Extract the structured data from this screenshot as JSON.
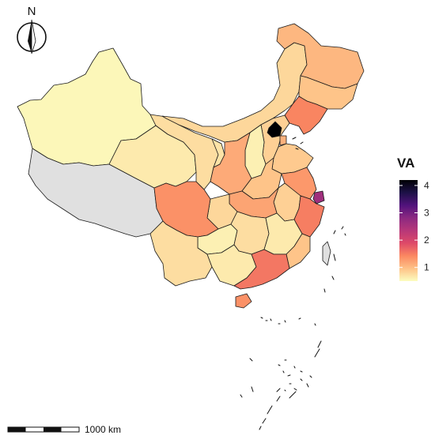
{
  "north_arrow": {
    "label": "N",
    "icon": "north-arrow-icon"
  },
  "legend": {
    "title": "VA",
    "ticks": [
      "1",
      "2",
      "3",
      "4"
    ],
    "range": [
      0.5,
      4.2
    ],
    "colors": [
      "#fcfdbf",
      "#fec287",
      "#fb8861",
      "#de4968",
      "#b73779",
      "#8c2981",
      "#51127c",
      "#1d1147",
      "#000004"
    ]
  },
  "scale_bar": {
    "label": "1000 km"
  },
  "colors": {
    "no_data": "#e0e0e0",
    "border": "#1a1a1a",
    "background": "#ffffff"
  },
  "regions": [
    {
      "id": "xinjiang",
      "value": 0.55
    },
    {
      "id": "tibet",
      "value": null
    },
    {
      "id": "qinghai",
      "value": 0.65
    },
    {
      "id": "gansu",
      "value": 0.75
    },
    {
      "id": "inner-mongolia",
      "value": 0.8
    },
    {
      "id": "heilongjiang",
      "value": 1.05
    },
    {
      "id": "jilin",
      "value": 0.95
    },
    {
      "id": "liaoning",
      "value": 1.45
    },
    {
      "id": "beijing",
      "value": 4.2
    },
    {
      "id": "tianjin",
      "value": 1.1
    },
    {
      "id": "hebei",
      "value": 0.85
    },
    {
      "id": "shanxi",
      "value": 0.6
    },
    {
      "id": "shaanxi",
      "value": 1.15
    },
    {
      "id": "ningxia",
      "value": 0.7
    },
    {
      "id": "shandong",
      "value": 0.9
    },
    {
      "id": "henan",
      "value": 0.95
    },
    {
      "id": "jiangsu",
      "value": 1.3
    },
    {
      "id": "shanghai",
      "value": 2.6
    },
    {
      "id": "anhui",
      "value": 0.85
    },
    {
      "id": "hubei",
      "value": 1.2
    },
    {
      "id": "zhejiang",
      "value": 1.5
    },
    {
      "id": "sichuan",
      "value": 1.35
    },
    {
      "id": "chongqing",
      "value": 0.8
    },
    {
      "id": "hunan",
      "value": 0.75
    },
    {
      "id": "jiangxi",
      "value": 0.65
    },
    {
      "id": "fujian",
      "value": 0.95
    },
    {
      "id": "guizhou",
      "value": 0.6
    },
    {
      "id": "yunnan",
      "value": 0.75
    },
    {
      "id": "guangxi",
      "value": 0.65
    },
    {
      "id": "guangdong",
      "value": 1.55
    },
    {
      "id": "hainan",
      "value": 1.35
    },
    {
      "id": "taiwan",
      "value": null
    }
  ]
}
